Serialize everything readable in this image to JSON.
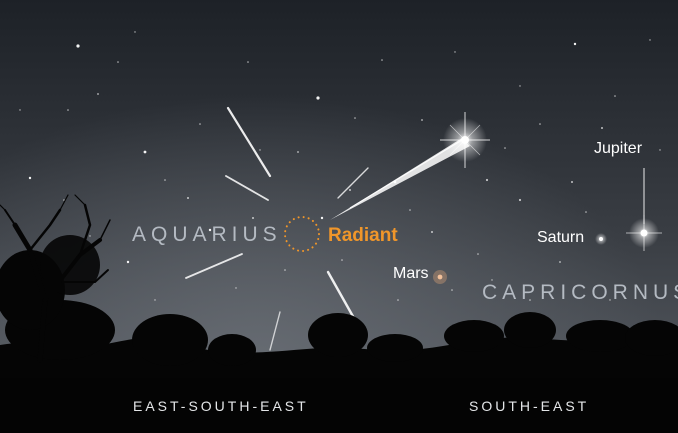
{
  "constellations": {
    "aquarius": "AQUARIUS",
    "capricornus": "CAPRICORNUS"
  },
  "radiant": {
    "label": "Radiant"
  },
  "planets": {
    "jupiter": "Jupiter",
    "saturn": "Saturn",
    "mars": "Mars"
  },
  "directions": {
    "left": "EAST-SOUTH-EAST",
    "right": "SOUTH-EAST"
  },
  "colors": {
    "radiant": "#f0962a",
    "mars": "#e8a878",
    "sky_top": "#1e2228",
    "sky_glow": "#5b6068",
    "ground": "#040404"
  }
}
